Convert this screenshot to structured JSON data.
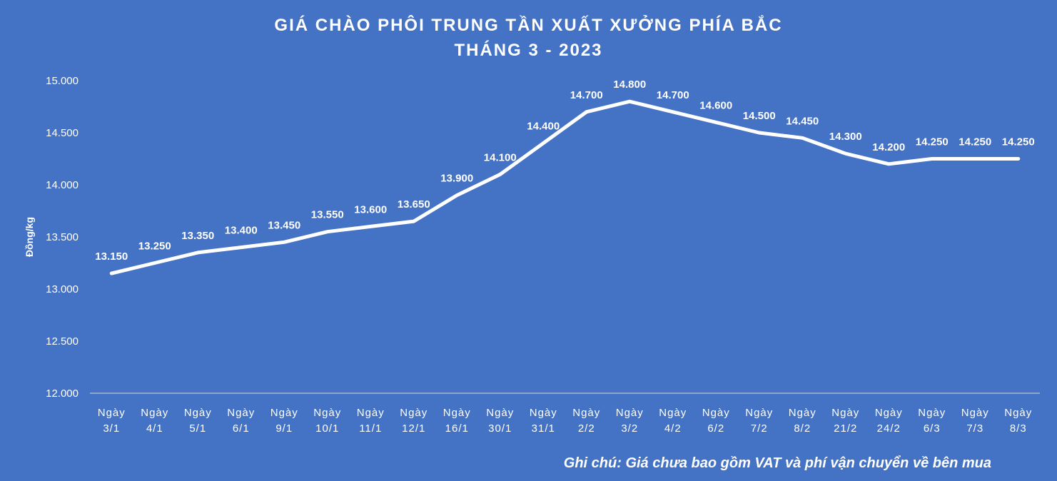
{
  "chart_data": {
    "type": "line",
    "title": "GIÁ CHÀO PHÔI TRUNG TẦN XUẤT XƯỞNG PHÍA BẮC",
    "subtitle": "THÁNG 3 - 2023",
    "ylabel": "Đồng/kg",
    "xlabel": "",
    "ylim": [
      12000,
      15000
    ],
    "y_ticks": [
      12000,
      12500,
      13000,
      13500,
      14000,
      14500,
      15000
    ],
    "y_tick_labels": [
      "12.000",
      "12.500",
      "13.000",
      "13.500",
      "14.000",
      "14.500",
      "15.000"
    ],
    "grid": "vertical drop lines",
    "legend": "none",
    "categories": [
      [
        "Ngày",
        "3/1"
      ],
      [
        "Ngày",
        "4/1"
      ],
      [
        "Ngày",
        "5/1"
      ],
      [
        "Ngày",
        "6/1"
      ],
      [
        "Ngày",
        "9/1"
      ],
      [
        "Ngày",
        "10/1"
      ],
      [
        "Ngày",
        "11/1"
      ],
      [
        "Ngày",
        "12/1"
      ],
      [
        "Ngày",
        "16/1"
      ],
      [
        "Ngày",
        "30/1"
      ],
      [
        "Ngày",
        "31/1"
      ],
      [
        "Ngày",
        "2/2"
      ],
      [
        "Ngày",
        "3/2"
      ],
      [
        "Ngày",
        "4/2"
      ],
      [
        "Ngày",
        "6/2"
      ],
      [
        "Ngày",
        "7/2"
      ],
      [
        "Ngày",
        "8/2"
      ],
      [
        "Ngày",
        "21/2"
      ],
      [
        "Ngày",
        "24/2"
      ],
      [
        "Ngày",
        "6/3"
      ],
      [
        "Ngày",
        "7/3"
      ],
      [
        "Ngày",
        "8/3"
      ]
    ],
    "values": [
      13150,
      13250,
      13350,
      13400,
      13450,
      13550,
      13600,
      13650,
      13900,
      14100,
      14400,
      14700,
      14800,
      14700,
      14600,
      14500,
      14450,
      14300,
      14200,
      14250,
      14250,
      14250
    ],
    "data_labels": [
      "13.150",
      "13.250",
      "13.350",
      "13.400",
      "13.450",
      "13.550",
      "13.600",
      "13.650",
      "13.900",
      "14.100",
      "14.400",
      "14.700",
      "14.800",
      "14.700",
      "14.600",
      "14.500",
      "14.450",
      "14.300",
      "14.200",
      "14.250",
      "14.250",
      "14.250"
    ],
    "colors": {
      "background": "#4472c4",
      "line": "#ffffff",
      "text": "#ffffff"
    }
  },
  "note": "Ghi chú: Giá chưa bao gồm VAT và phí vận chuyển về bên mua"
}
